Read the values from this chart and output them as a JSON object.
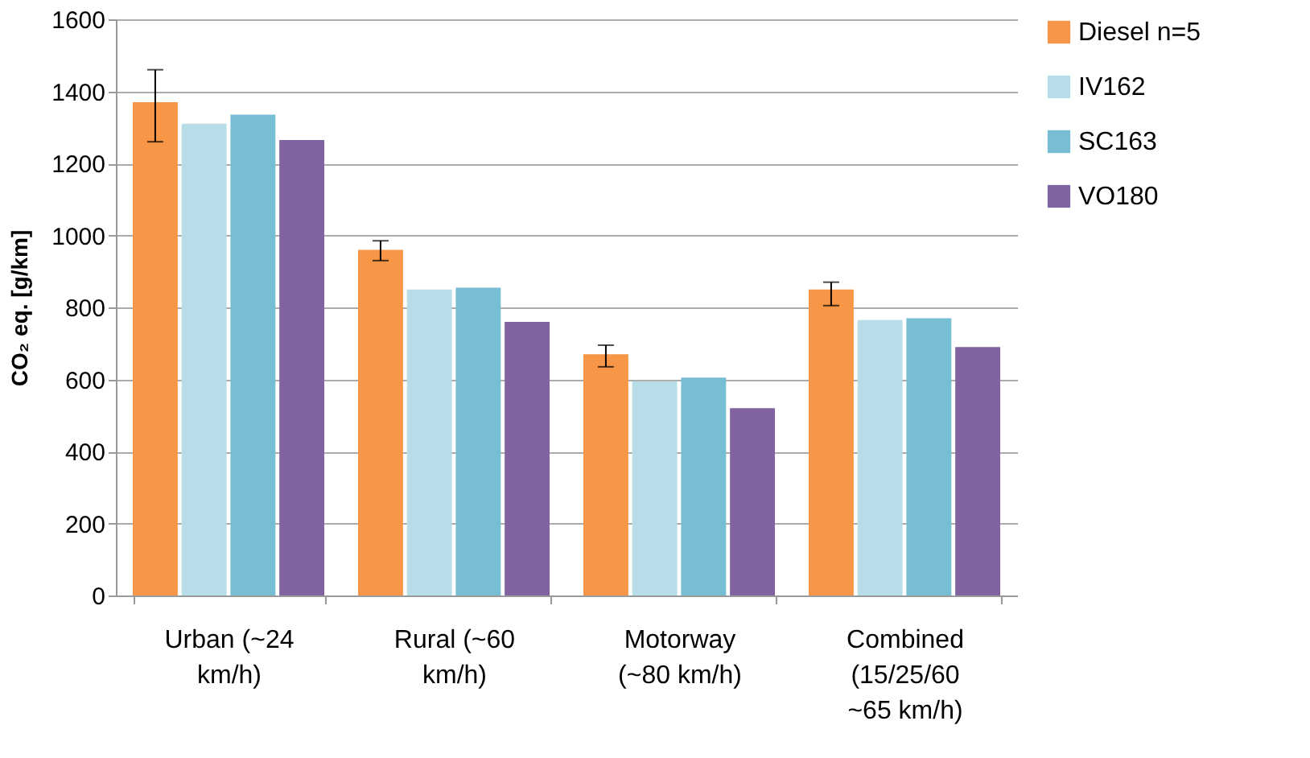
{
  "chart_data": {
    "type": "bar",
    "ylabel": "CO₂ eq. [g/km]",
    "categories": [
      "Urban (~24 km/h)",
      "Rural (~60 km/h)",
      "Motorway (~80 km/h)",
      "Combined (15/25/60 ~65 km/h)"
    ],
    "series": [
      {
        "name": "Diesel n=5",
        "color": "#f79646",
        "values": [
          1370,
          960,
          670,
          850
        ],
        "errors": [
          [
            1260,
            1460
          ],
          [
            930,
            985
          ],
          [
            635,
            695
          ],
          [
            805,
            870
          ]
        ]
      },
      {
        "name": "IV162",
        "color": "#b7dde8",
        "values": [
          1310,
          850,
          595,
          765
        ]
      },
      {
        "name": "SC163",
        "color": "#77bdd3",
        "values": [
          1335,
          855,
          605,
          770
        ]
      },
      {
        "name": "VO180",
        "color": "#8064a2",
        "values": [
          1265,
          760,
          520,
          690
        ]
      }
    ],
    "ylim": [
      0,
      1600
    ],
    "yticks": [
      0,
      200,
      400,
      600,
      800,
      1000,
      1200,
      1400,
      1600
    ],
    "grid": "y",
    "legend": "right"
  }
}
